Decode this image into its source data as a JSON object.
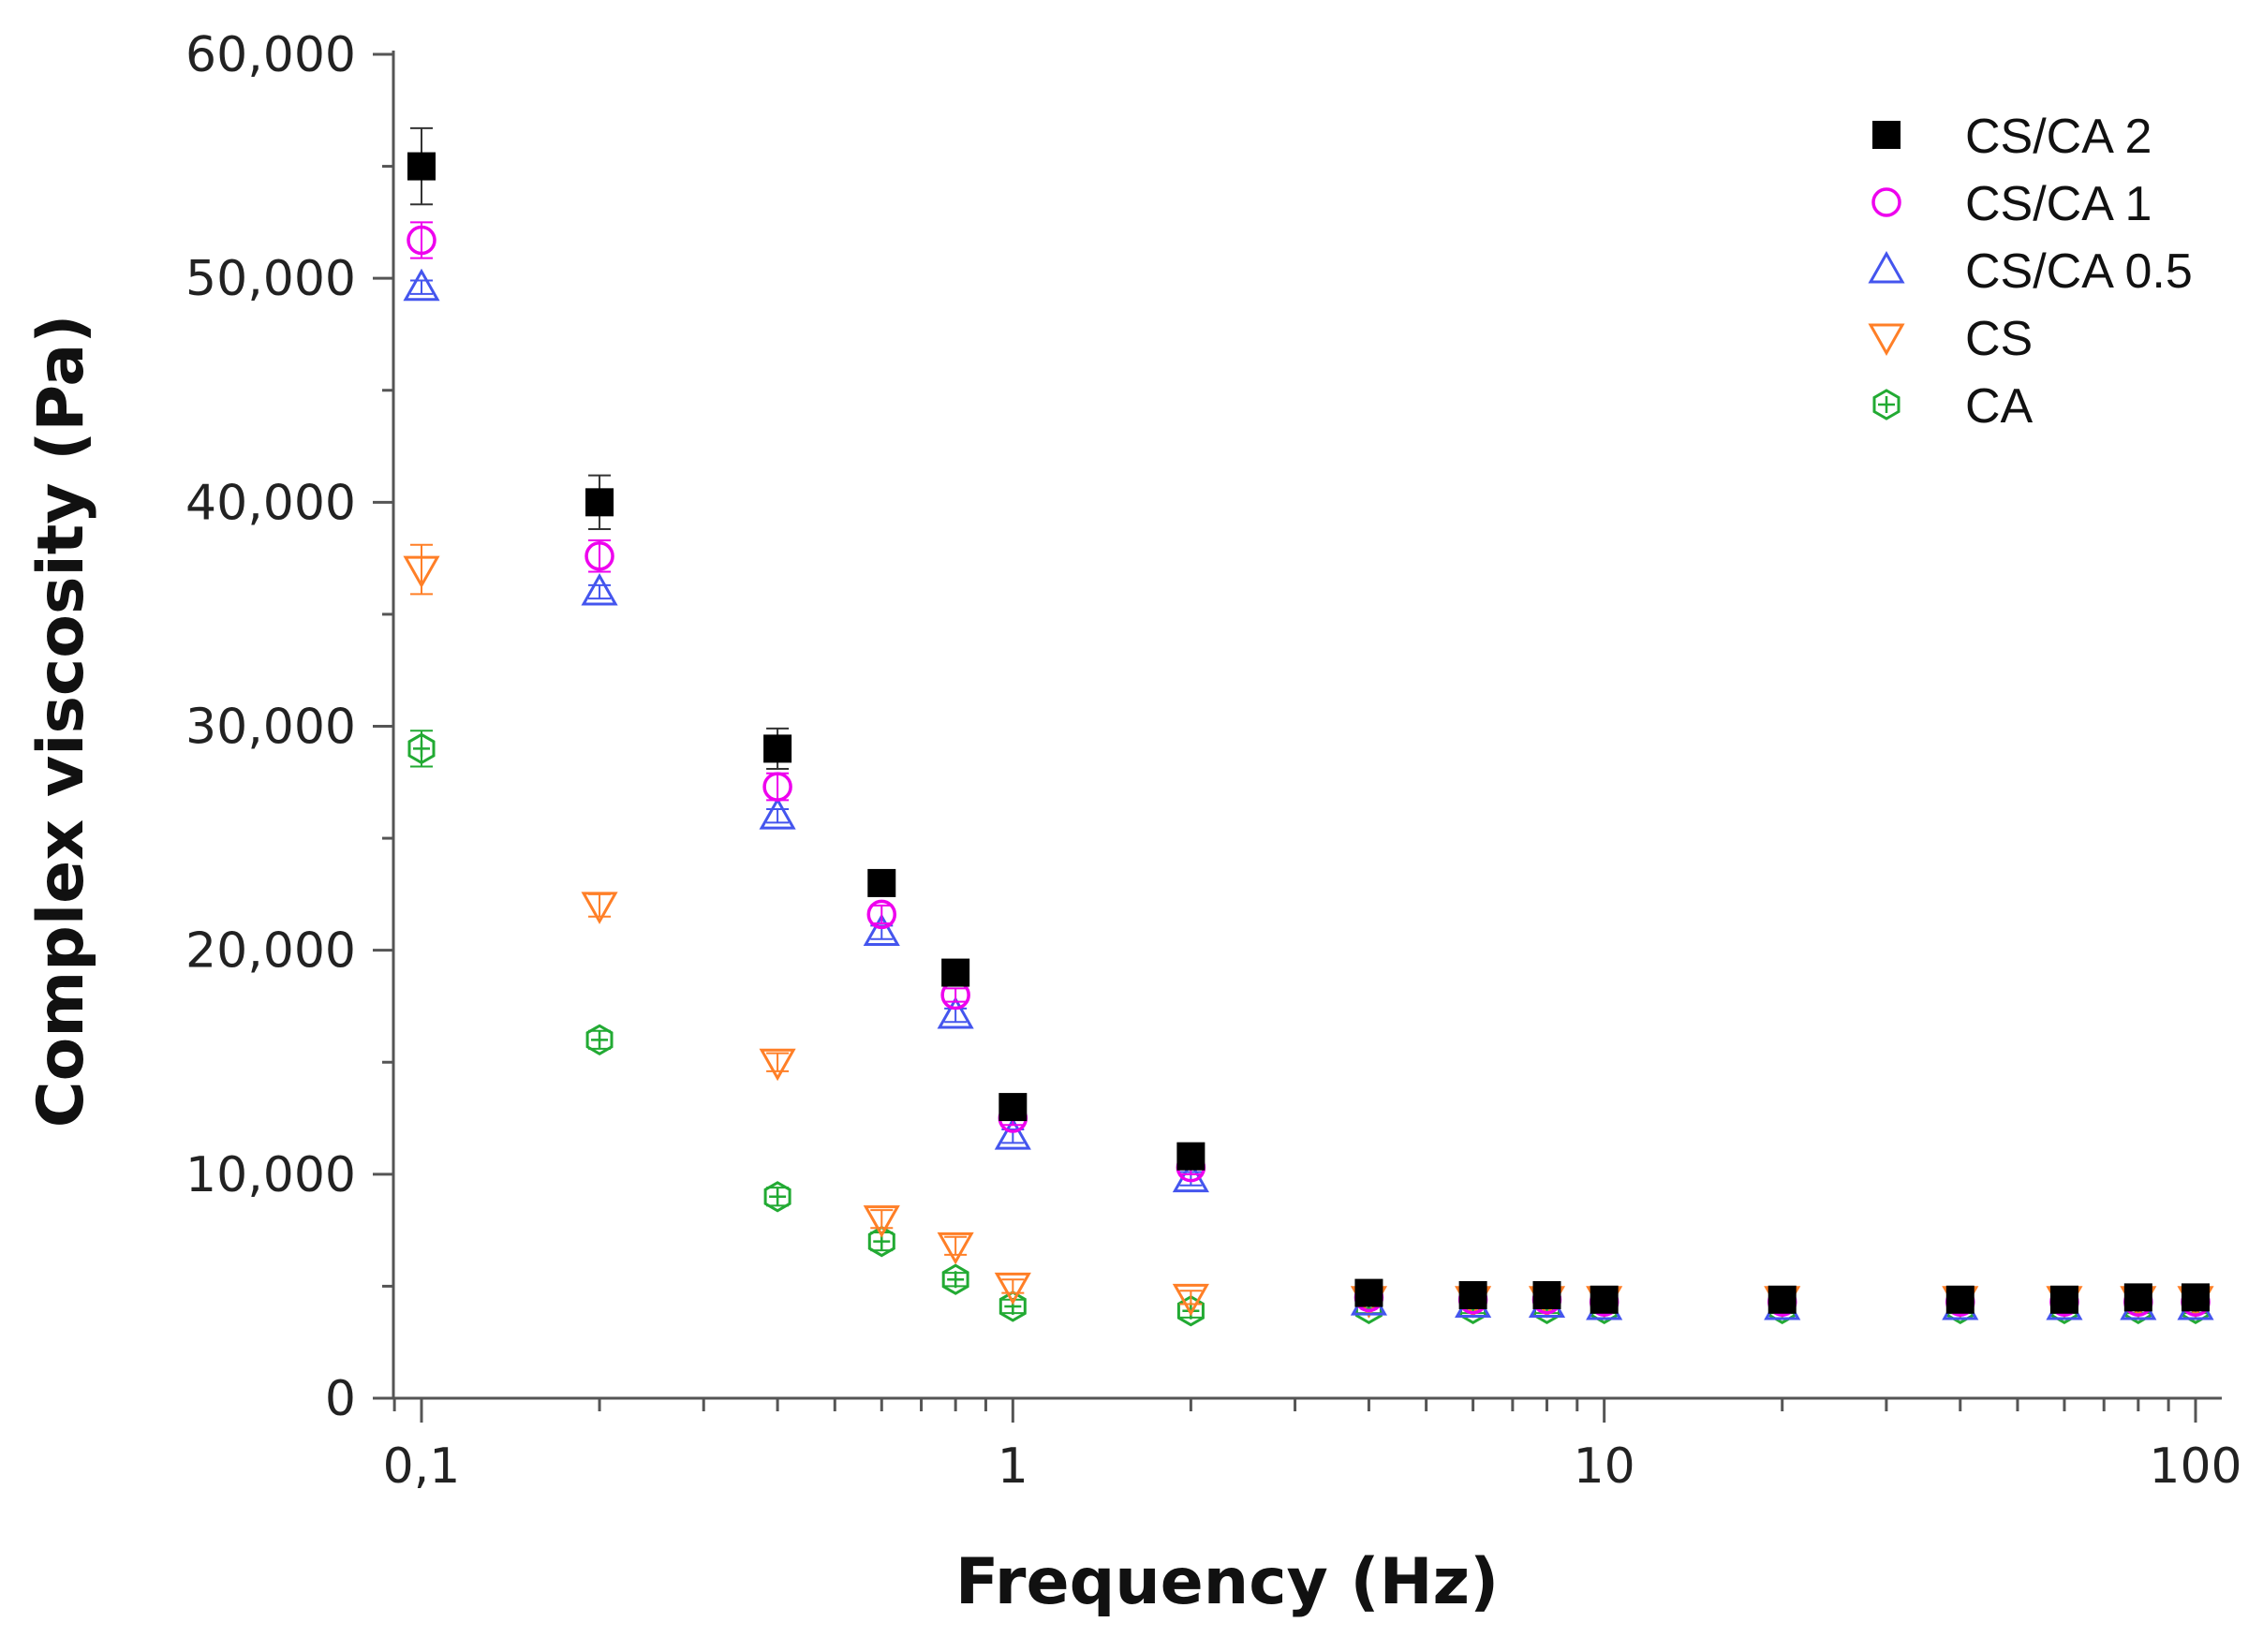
{
  "chart_data": {
    "type": "scatter",
    "title": "",
    "xlabel": "Frequency (Hz)",
    "ylabel": "Complex viscosity (Pa)",
    "xscale": "log",
    "xlim": [
      0.09,
      110
    ],
    "ylim": [
      0,
      60000
    ],
    "grid": false,
    "legend_position": "top-right",
    "x_ticks": [
      {
        "value": 0.1,
        "label": "0,1"
      },
      {
        "value": 1,
        "label": "1"
      },
      {
        "value": 10,
        "label": "10"
      },
      {
        "value": 100,
        "label": "100"
      }
    ],
    "y_ticks": [
      {
        "value": 0,
        "label": "0"
      },
      {
        "value": 10000,
        "label": "10,000"
      },
      {
        "value": 20000,
        "label": "20,000"
      },
      {
        "value": 30000,
        "label": "30,000"
      },
      {
        "value": 40000,
        "label": "40,000"
      },
      {
        "value": 50000,
        "label": "50,000"
      },
      {
        "value": 60000,
        "label": "60,000"
      }
    ],
    "x": [
      0.1,
      0.2,
      0.4,
      0.6,
      0.8,
      1,
      2,
      4,
      6,
      8,
      10,
      20,
      40,
      60,
      80,
      100
    ],
    "series": [
      {
        "name": "CS/CA 2",
        "marker": "square-filled",
        "color": "#000000",
        "values": [
          55000,
          40000,
          29000,
          23000,
          19000,
          13000,
          10800,
          4700,
          4600,
          4600,
          4400,
          4400,
          4400,
          4400,
          4500,
          4500
        ],
        "errors": [
          1700,
          1200,
          900,
          500,
          400,
          400,
          300,
          200,
          200,
          200,
          200,
          200,
          200,
          200,
          200,
          200
        ]
      },
      {
        "name": "CS/CA 1",
        "marker": "circle-open",
        "color": "#ee00ee",
        "values": [
          51700,
          37600,
          27300,
          21600,
          18000,
          12500,
          10300,
          4500,
          4400,
          4400,
          4300,
          4300,
          4300,
          4300,
          4300,
          4300
        ],
        "errors": [
          800,
          700,
          600,
          400,
          300,
          300,
          300,
          200,
          200,
          200,
          200,
          200,
          200,
          200,
          200,
          200
        ]
      },
      {
        "name": "CS/CA 0.5",
        "marker": "triangle-up-open",
        "color": "#4455ee",
        "values": [
          49600,
          36000,
          26000,
          20800,
          17100,
          11700,
          9800,
          4300,
          4200,
          4200,
          4100,
          4100,
          4100,
          4100,
          4100,
          4100
        ],
        "errors": [
          300,
          300,
          300,
          300,
          300,
          300,
          300,
          150,
          150,
          150,
          150,
          150,
          150,
          150,
          150,
          150
        ]
      },
      {
        "name": "CS",
        "marker": "triangle-down-open",
        "color": "#ff7f27",
        "values": [
          37000,
          22000,
          15000,
          8000,
          6800,
          5000,
          4500,
          4400,
          4400,
          4400,
          4400,
          4400,
          4400,
          4400,
          4400,
          4400
        ],
        "errors": [
          1100,
          500,
          400,
          400,
          400,
          300,
          300,
          200,
          200,
          200,
          200,
          200,
          200,
          200,
          200,
          200
        ]
      },
      {
        "name": "CA",
        "marker": "hexagon-open",
        "color": "#22aa33",
        "values": [
          29000,
          16000,
          9000,
          7000,
          5300,
          4100,
          3900,
          4000,
          4000,
          4000,
          4000,
          4000,
          4000,
          4000,
          4000,
          4000
        ],
        "errors": [
          800,
          400,
          400,
          400,
          300,
          300,
          300,
          200,
          200,
          200,
          200,
          200,
          200,
          200,
          200,
          200
        ]
      }
    ]
  }
}
